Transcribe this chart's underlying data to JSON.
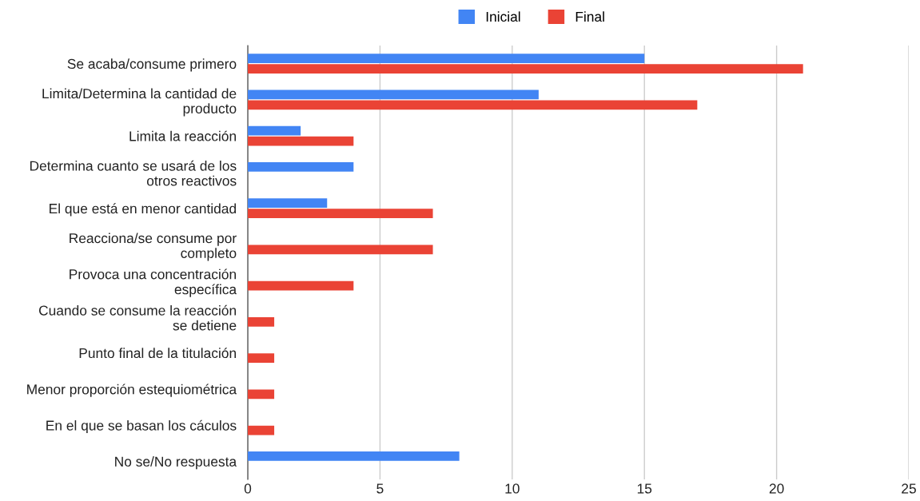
{
  "chart_data": {
    "type": "bar",
    "orientation": "horizontal",
    "categories": [
      "Se acaba/consume primero",
      "Limita/Determina la cantidad de\nproducto",
      "Limita la reacción",
      "Determina cuanto se usará de los\notros reactivos",
      "El que está en menor cantidad",
      "Reacciona/se consume por\ncompleto",
      "Provoca una concentración\nespecífica",
      "Cuando se consume la reacción\nse detiene",
      "Punto final de la titulación",
      "Menor proporción estequiométrica",
      "En el que se basan los cáculos",
      "No se/No respuesta"
    ],
    "series": [
      {
        "name": "Inicial",
        "color": "#4285f4",
        "values": [
          15,
          11,
          2,
          4,
          3,
          null,
          null,
          null,
          null,
          null,
          null,
          8
        ]
      },
      {
        "name": "Final",
        "color": "#ea4335",
        "values": [
          21,
          17,
          4,
          null,
          7,
          7,
          4,
          1,
          1,
          1,
          1,
          null
        ]
      }
    ],
    "xlim": [
      0,
      25
    ],
    "xticks": [
      0,
      5,
      10,
      15,
      20,
      25
    ],
    "grid": "x",
    "legend": "top"
  }
}
